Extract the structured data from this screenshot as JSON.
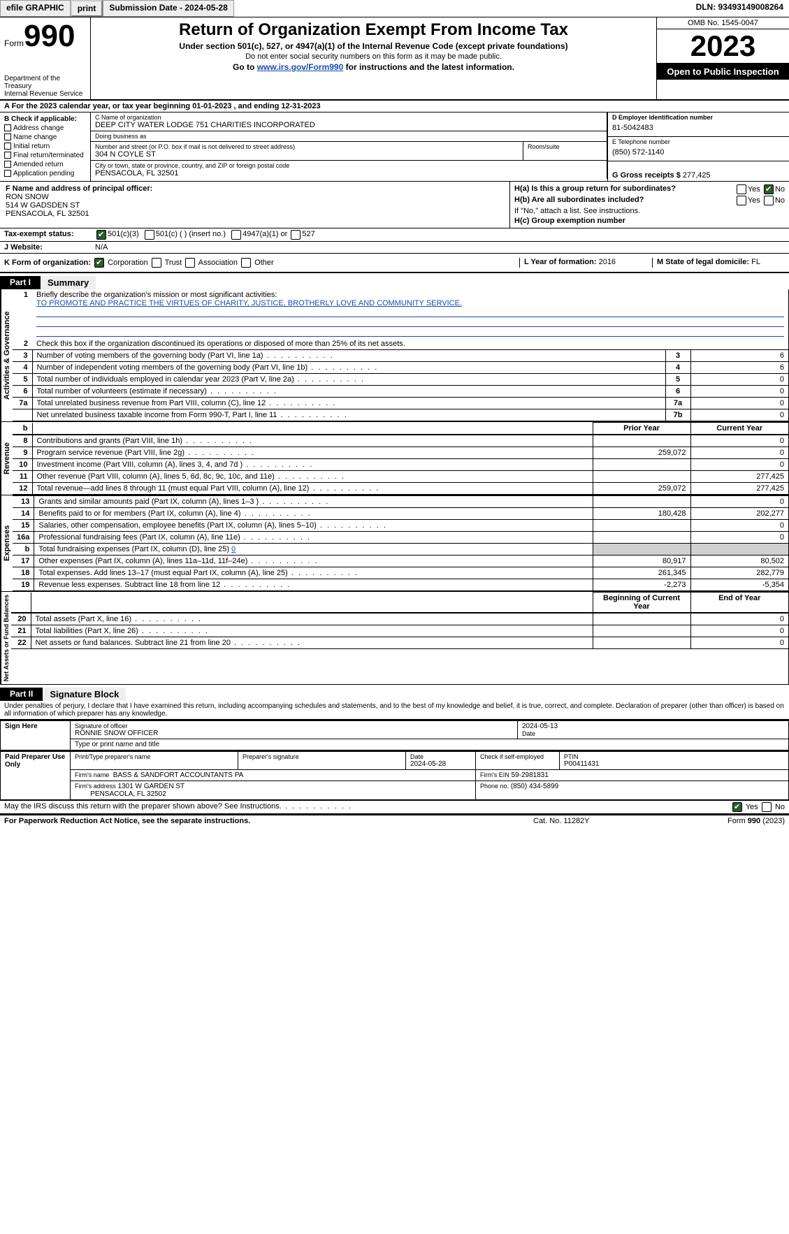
{
  "topbar": {
    "efile": "efile GRAPHIC",
    "print": "print",
    "sub_date_label": "Submission Date - 2024-05-28",
    "dln": "DLN: 93493149008264"
  },
  "header": {
    "form_label_small": "Form",
    "form_num": "990",
    "dept": "Department of the Treasury",
    "irs": "Internal Revenue Service",
    "title": "Return of Organization Exempt From Income Tax",
    "under": "Under section 501(c), 527, or 4947(a)(1) of the Internal Revenue Code (except private foundations)",
    "ssn_warn": "Do not enter social security numbers on this form as it may be made public.",
    "goto_pre": "Go to ",
    "goto_link": "www.irs.gov/Form990",
    "goto_post": " for instructions and the latest information.",
    "omb": "OMB No. 1545-0047",
    "year": "2023",
    "open": "Open to Public Inspection"
  },
  "period": {
    "text": "A  For the 2023 calendar year, or tax year beginning 01-01-2023    , and ending 12-31-2023"
  },
  "boxB": {
    "label": "B Check if applicable:",
    "items": [
      "Address change",
      "Name change",
      "Initial return",
      "Final return/terminated",
      "Amended return",
      "Application pending"
    ]
  },
  "boxC": {
    "name_label": "C Name of organization",
    "name": "DEEP CITY WATER LODGE 751 CHARITIES INCORPORATED",
    "dba_label": "Doing business as",
    "dba": "",
    "street_label": "Number and street (or P.O. box if mail is not delivered to street address)",
    "street": "304 N COYLE ST",
    "room_label": "Room/suite",
    "city_label": "City or town, state or province, country, and ZIP or foreign postal code",
    "city": "PENSACOLA, FL  32501"
  },
  "boxD": {
    "ein_label": "D Employer identification number",
    "ein": "81-5042483",
    "phone_label": "E Telephone number",
    "phone": "(850) 572-1140",
    "gross_label": "G Gross receipts $ ",
    "gross": "277,425"
  },
  "boxF": {
    "label": "F  Name and address of principal officer:",
    "name": "RON SNOW",
    "addr1": "514 W GADSDEN ST",
    "addr2": "PENSACOLA, FL  32501"
  },
  "boxH": {
    "a_label": "H(a)  Is this a group return for subordinates?",
    "b_label": "H(b)  Are all subordinates included?",
    "b_note": "If \"No,\" attach a list. See instructions.",
    "c_label": "H(c)  Group exemption number",
    "yes": "Yes",
    "no": "No"
  },
  "taxexempt": {
    "label": "Tax-exempt status:",
    "c3": "501(c)(3)",
    "c_other": "501(c) (  ) (insert no.)",
    "a1": "4947(a)(1) or",
    "s527": "527"
  },
  "website": {
    "label": "J   Website:",
    "value": "N/A"
  },
  "kform": {
    "label": "K Form of organization:",
    "corp": "Corporation",
    "trust": "Trust",
    "assoc": "Association",
    "other": "Other"
  },
  "lyear": {
    "label": "L Year of formation:",
    "value": "2016"
  },
  "mstate": {
    "label": "M State of legal domicile:",
    "value": "FL"
  },
  "part1": {
    "badge": "Part I",
    "title": "Summary"
  },
  "summary": {
    "l1_label": "Briefly describe the organization's mission or most significant activities:",
    "l1_text": "TO PROMOTE AND PRACTICE THE VIRTUES OF CHARITY, JUSTICE, BROTHERLY LOVE AND COMMUNITY SERVICE.",
    "l2_label": "Check this box      if the organization discontinued its operations or disposed of more than 25% of its net assets.",
    "rows_top": [
      {
        "n": "3",
        "text": "Number of voting members of the governing body (Part VI, line 1a)",
        "box": "3",
        "val": "6"
      },
      {
        "n": "4",
        "text": "Number of independent voting members of the governing body (Part VI, line 1b)",
        "box": "4",
        "val": "6"
      },
      {
        "n": "5",
        "text": "Total number of individuals employed in calendar year 2023 (Part V, line 2a)",
        "box": "5",
        "val": "0"
      },
      {
        "n": "6",
        "text": "Total number of volunteers (estimate if necessary)",
        "box": "6",
        "val": "0"
      },
      {
        "n": "7a",
        "text": "Total unrelated business revenue from Part VIII, column (C), line 12",
        "box": "7a",
        "val": "0"
      },
      {
        "n": "",
        "text": "Net unrelated business taxable income from Form 990-T, Part I, line 11",
        "box": "7b",
        "val": "0"
      }
    ],
    "col_prior": "Prior Year",
    "col_cur": "Current Year",
    "rev_rows": [
      {
        "n": "8",
        "text": "Contributions and grants (Part VIII, line 1h)",
        "p": "",
        "c": "0"
      },
      {
        "n": "9",
        "text": "Program service revenue (Part VIII, line 2g)",
        "p": "259,072",
        "c": "0"
      },
      {
        "n": "10",
        "text": "Investment income (Part VIII, column (A), lines 3, 4, and 7d )",
        "p": "",
        "c": "0"
      },
      {
        "n": "11",
        "text": "Other revenue (Part VIII, column (A), lines 5, 6d, 8c, 9c, 10c, and 11e)",
        "p": "",
        "c": "277,425"
      },
      {
        "n": "12",
        "text": "Total revenue—add lines 8 through 11 (must equal Part VIII, column (A), line 12)",
        "p": "259,072",
        "c": "277,425"
      }
    ],
    "exp_rows": [
      {
        "n": "13",
        "text": "Grants and similar amounts paid (Part IX, column (A), lines 1–3 )",
        "p": "",
        "c": "0"
      },
      {
        "n": "14",
        "text": "Benefits paid to or for members (Part IX, column (A), line 4)",
        "p": "180,428",
        "c": "202,277"
      },
      {
        "n": "15",
        "text": "Salaries, other compensation, employee benefits (Part IX, column (A), lines 5–10)",
        "p": "",
        "c": "0"
      },
      {
        "n": "16a",
        "text": "Professional fundraising fees (Part IX, column (A), line 11e)",
        "p": "",
        "c": "0"
      },
      {
        "n": "b",
        "text": "Total fundraising expenses (Part IX, column (D), line 25) 0",
        "p": "SHADE",
        "c": "SHADE"
      },
      {
        "n": "17",
        "text": "Other expenses (Part IX, column (A), lines 11a–11d, 11f–24e)",
        "p": "80,917",
        "c": "80,502"
      },
      {
        "n": "18",
        "text": "Total expenses. Add lines 13–17 (must equal Part IX, column (A), line 25)",
        "p": "261,345",
        "c": "282,779"
      },
      {
        "n": "19",
        "text": "Revenue less expenses. Subtract line 18 from line 12",
        "p": "-2,273",
        "c": "-5,354"
      }
    ],
    "col_begin": "Beginning of Current Year",
    "col_end": "End of Year",
    "net_rows": [
      {
        "n": "20",
        "text": "Total assets (Part X, line 16)",
        "p": "",
        "c": "0"
      },
      {
        "n": "21",
        "text": "Total liabilities (Part X, line 26)",
        "p": "",
        "c": "0"
      },
      {
        "n": "22",
        "text": "Net assets or fund balances. Subtract line 21 from line 20",
        "p": "",
        "c": "0"
      }
    ]
  },
  "vlabels": {
    "gov": "Activities & Governance",
    "rev": "Revenue",
    "exp": "Expenses",
    "net": "Net Assets or Fund Balances"
  },
  "part2": {
    "badge": "Part II",
    "title": "Signature Block"
  },
  "perjury": "Under penalties of perjury, I declare that I have examined this return, including accompanying schedules and statements, and to the best of my knowledge and belief, it is true, correct, and complete. Declaration of preparer (other than officer) is based on all information of which preparer has any knowledge.",
  "sign": {
    "left": "Sign Here",
    "sig_label": "Signature of officer",
    "officer": "RONNIE SNOW  OFFICER",
    "name_label": "Type or print name and title",
    "date_label": "Date",
    "date": "2024-05-13"
  },
  "paid": {
    "left": "Paid Preparer Use Only",
    "prep_name_label": "Print/Type preparer's name",
    "prep_sig_label": "Preparer's signature",
    "date_label": "Date",
    "date": "2024-05-28",
    "selfemp_label": "Check         if self-employed",
    "ptin_label": "PTIN",
    "ptin": "P00411431",
    "firm_name_label": "Firm's name",
    "firm_name": "BASS & SANDFORT ACCOUNTANTS PA",
    "firm_ein_label": "Firm's EIN",
    "firm_ein": "59-2981831",
    "firm_addr_label": "Firm's address",
    "firm_addr1": "1301 W GARDEN ST",
    "firm_addr2": "PENSACOLA, FL  32502",
    "firm_phone_label": "Phone no.",
    "firm_phone": "(850) 434-5899"
  },
  "discuss": {
    "text": "May the IRS discuss this return with the preparer shown above? See Instructions.",
    "yes": "Yes",
    "no": "No"
  },
  "footer": {
    "pra": "For Paperwork Reduction Act Notice, see the separate instructions.",
    "cat": "Cat. No. 11282Y",
    "form": "Form 990 (2023)"
  },
  "style": {
    "link_color": "#1a4db3",
    "check_color": "#2a5c2a"
  }
}
